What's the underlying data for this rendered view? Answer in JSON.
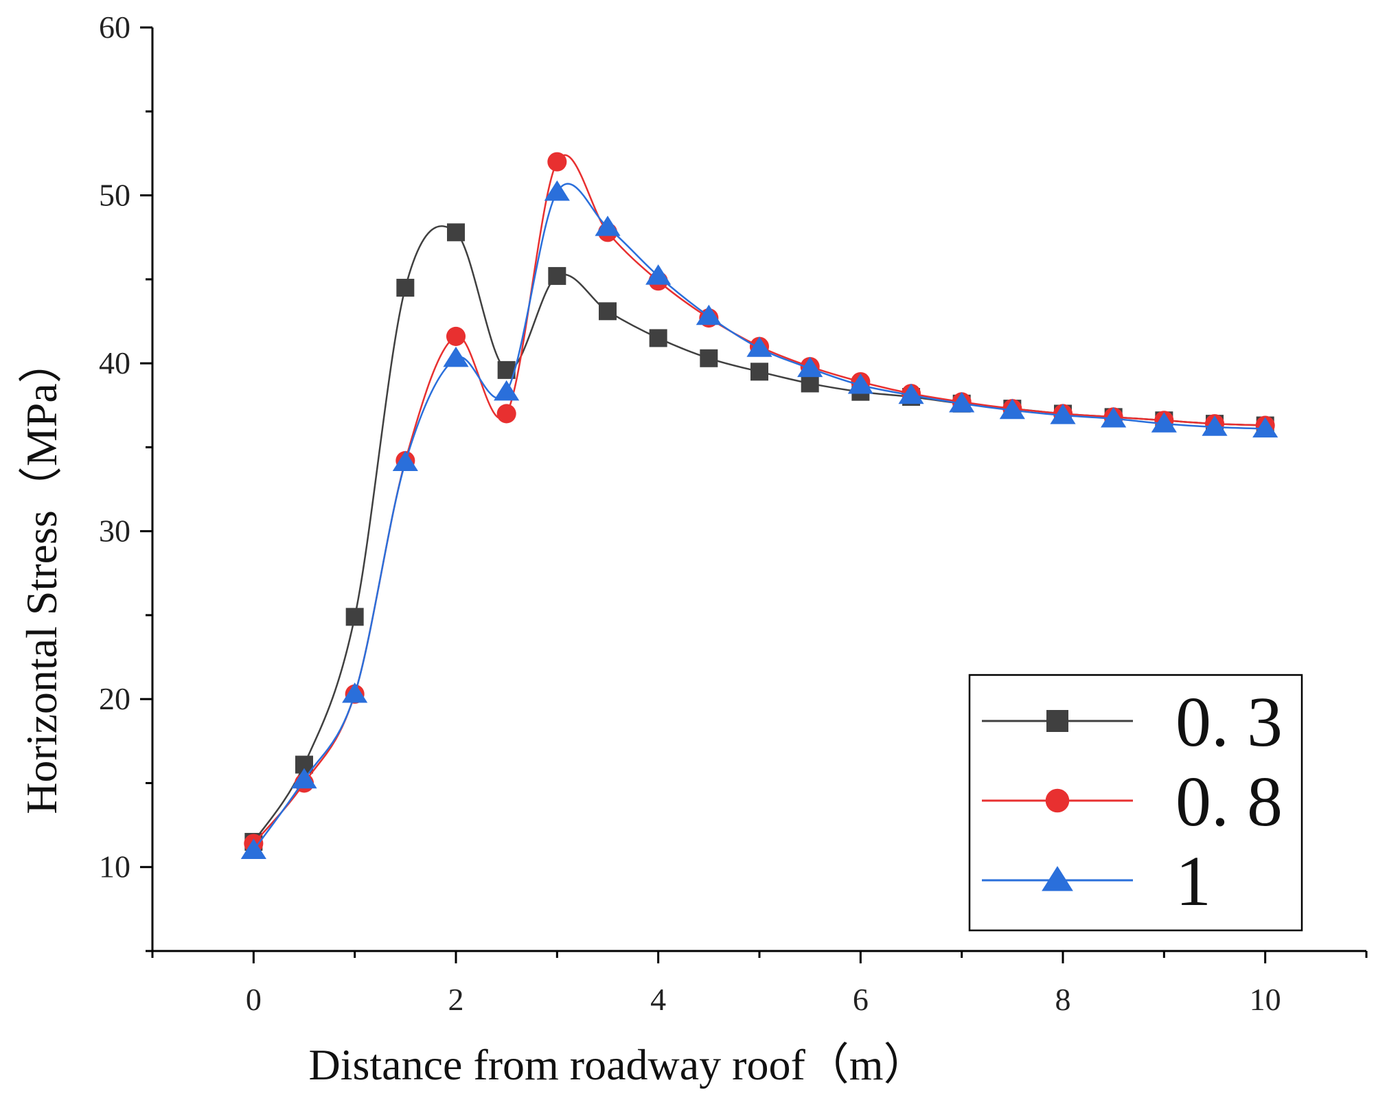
{
  "chart_data": {
    "type": "line",
    "title": "",
    "xlabel": "Distance from roadway roof（m）",
    "ylabel": "Horizontal Stress（MPa）",
    "xlim": [
      -1,
      11
    ],
    "ylim": [
      5,
      60
    ],
    "xticks": [
      0,
      2,
      4,
      6,
      8,
      10
    ],
    "yticks": [
      10,
      20,
      30,
      40,
      50,
      60
    ],
    "xtick_labels": [
      "0",
      "2",
      "4",
      "6",
      "8",
      "10"
    ],
    "ytick_labels": [
      "10",
      "20",
      "30",
      "40",
      "50",
      "60"
    ],
    "grid": false,
    "legend_position": "bottom-right",
    "x": [
      0,
      0.5,
      1,
      1.5,
      2,
      2.5,
      3,
      3.5,
      4,
      4.5,
      5,
      5.5,
      6,
      6.5,
      7,
      7.5,
      8,
      8.5,
      9,
      9.5,
      10
    ],
    "series": [
      {
        "name": "0. 3",
        "color": "#404040",
        "marker": "square",
        "values": [
          11.5,
          16.1,
          24.9,
          44.5,
          47.8,
          39.6,
          45.2,
          43.1,
          41.5,
          40.3,
          39.5,
          38.8,
          38.3,
          38.0,
          37.6,
          37.3,
          37.0,
          36.8,
          36.6,
          36.4,
          36.3
        ]
      },
      {
        "name": "0. 8",
        "color": "#e83030",
        "marker": "circle",
        "values": [
          11.4,
          15.0,
          20.3,
          34.2,
          41.6,
          37.0,
          52.0,
          47.8,
          44.9,
          42.7,
          41.0,
          39.8,
          38.9,
          38.2,
          37.7,
          37.3,
          37.0,
          36.8,
          36.6,
          36.4,
          36.3
        ]
      },
      {
        "name": "1",
        "color": "#2a6fdb",
        "marker": "triangle",
        "values": [
          11.0,
          15.2,
          20.3,
          34.1,
          40.3,
          38.3,
          50.2,
          48.1,
          45.2,
          42.8,
          40.9,
          39.7,
          38.7,
          38.1,
          37.6,
          37.2,
          36.9,
          36.7,
          36.4,
          36.2,
          36.1
        ]
      }
    ]
  }
}
